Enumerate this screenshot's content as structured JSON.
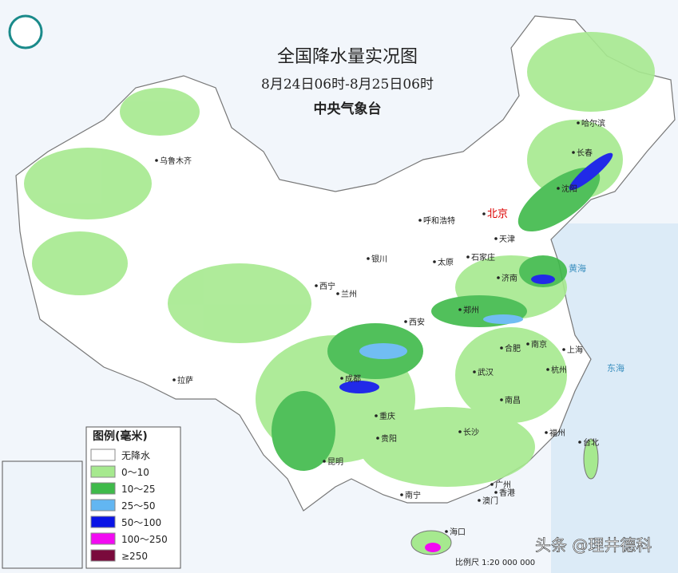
{
  "header": {
    "title": "全国降水量实况图",
    "subtitle": "8月24日06时-8月25日06时",
    "issuer": "中央气象台"
  },
  "legend": {
    "title": "图例(毫米)",
    "items": [
      {
        "label": "无降水",
        "color": "#ffffff"
      },
      {
        "label": "0～10",
        "color": "#a6e98f"
      },
      {
        "label": "10～25",
        "color": "#3fba4a"
      },
      {
        "label": "25～50",
        "color": "#62b6f2"
      },
      {
        "label": "50～100",
        "color": "#0a14e6"
      },
      {
        "label": "100～250",
        "color": "#f20af2"
      },
      {
        "label": "≥250",
        "color": "#7a0a3c"
      }
    ]
  },
  "cities": [
    "乌鲁木齐",
    "哈尔滨",
    "长春",
    "沈阳",
    "北京",
    "天津",
    "呼和浩特",
    "石家庄",
    "太原",
    "银川",
    "济南",
    "西宁",
    "兰州",
    "郑州",
    "西安",
    "合肥",
    "南京",
    "上海",
    "杭州",
    "武汉",
    "成都",
    "拉萨",
    "重庆",
    "南昌",
    "长沙",
    "福州",
    "台北",
    "贵阳",
    "昆明",
    "广州",
    "香港",
    "澳门",
    "南宁",
    "海口"
  ],
  "seas": [
    "黄海",
    "东海"
  ],
  "footer": {
    "scale": "比例尺 1:20 000 000",
    "watermark": "头条 @理井德科"
  }
}
